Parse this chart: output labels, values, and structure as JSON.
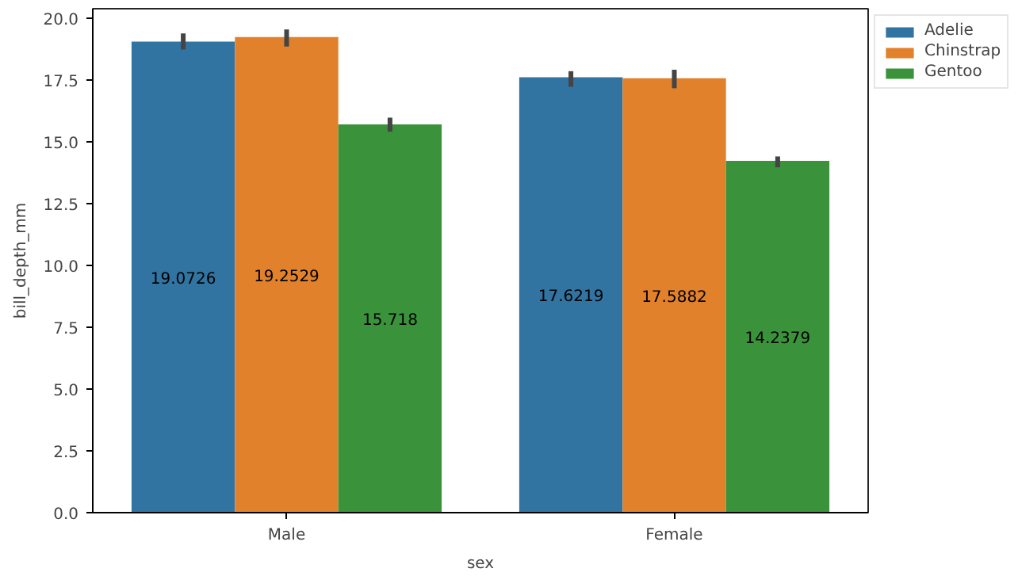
{
  "chart_data": {
    "type": "bar",
    "xlabel": "sex",
    "ylabel": "bill_depth_mm",
    "categories": [
      "Male",
      "Female"
    ],
    "series": [
      {
        "name": "Adelie",
        "color": "#3274a1",
        "values": [
          19.0726,
          17.6219
        ],
        "errors": [
          [
            18.75,
            19.4
          ],
          [
            17.24,
            17.87
          ]
        ]
      },
      {
        "name": "Chinstrap",
        "color": "#e1812c",
        "values": [
          19.2529,
          17.5882
        ],
        "errors": [
          [
            18.87,
            19.56
          ],
          [
            17.18,
            17.93
          ]
        ]
      },
      {
        "name": "Gentoo",
        "color": "#3a923a",
        "values": [
          15.718,
          14.2379
        ],
        "errors": [
          [
            15.42,
            15.99
          ],
          [
            13.98,
            14.42
          ]
        ]
      }
    ],
    "ylim": [
      0,
      20.4
    ],
    "yticks": [
      {
        "value": 0,
        "label": "0.0"
      },
      {
        "value": 2.5,
        "label": "2.5"
      },
      {
        "value": 5,
        "label": "5.0"
      },
      {
        "value": 7.5,
        "label": "7.5"
      },
      {
        "value": 10,
        "label": "10.0"
      },
      {
        "value": 12.5,
        "label": "12.5"
      },
      {
        "value": 15,
        "label": "15.0"
      },
      {
        "value": 17.5,
        "label": "17.5"
      },
      {
        "value": 20,
        "label": "20.0"
      }
    ],
    "data_labels": true,
    "legend": "top right",
    "grid": false
  }
}
